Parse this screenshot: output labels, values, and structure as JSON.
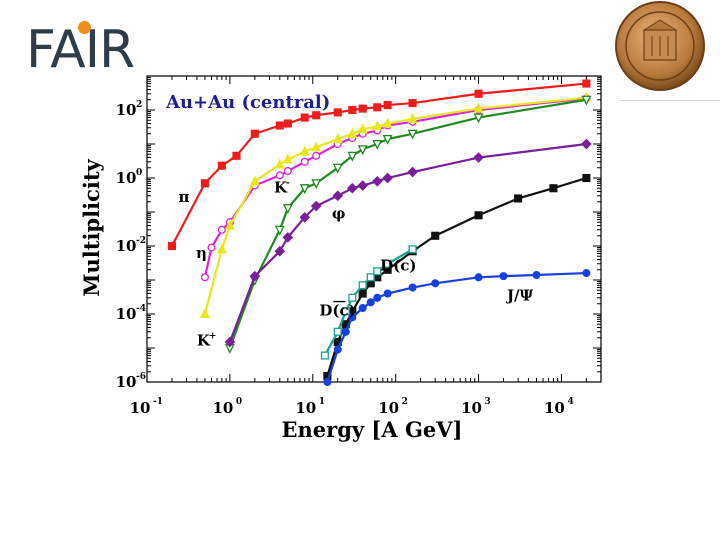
{
  "header": {
    "logo_text": "FAIR",
    "logo_accent": "#f28c18",
    "seal_icon": "university-seal-icon"
  },
  "chart_data": {
    "type": "line",
    "title": "Au+Au (central)",
    "xlabel": "Energy [A GeV]",
    "ylabel": "Multiplicity",
    "xscale": "log",
    "yscale": "log",
    "xlim": [
      0.1,
      30000
    ],
    "ylim": [
      1e-06,
      1000
    ],
    "x_ticks": [
      {
        "base": "10",
        "exp": "-1",
        "value": 0.1
      },
      {
        "base": "10",
        "exp": "0",
        "value": 1
      },
      {
        "base": "10",
        "exp": "1",
        "value": 10
      },
      {
        "base": "10",
        "exp": "2",
        "value": 100
      },
      {
        "base": "10",
        "exp": "3",
        "value": 1000
      },
      {
        "base": "10",
        "exp": "4",
        "value": 10000
      }
    ],
    "y_ticks": [
      {
        "base": "10",
        "exp": "2",
        "value": 100
      },
      {
        "base": "10",
        "exp": "0",
        "value": 1
      },
      {
        "base": "10",
        "exp": "-2",
        "value": 0.01
      },
      {
        "base": "10",
        "exp": "-4",
        "value": 0.0001
      },
      {
        "base": "10",
        "exp": "-6",
        "value": 1e-06
      }
    ],
    "series": [
      {
        "name": "π",
        "color": "#ee1c1c",
        "marker": "square",
        "filled": true,
        "label": "π",
        "label_pos": [
          0.24,
          0.2
        ],
        "x": [
          0.2,
          0.5,
          0.8,
          1.2,
          2,
          4,
          5,
          8,
          11,
          20,
          30,
          40,
          60,
          80,
          160,
          1000,
          20000
        ],
        "y": [
          0.01,
          0.7,
          2.3,
          4.5,
          20,
          35,
          40,
          60,
          70,
          85,
          100,
          110,
          120,
          140,
          160,
          300,
          600
        ]
      },
      {
        "name": "η",
        "color": "#dd22dd",
        "marker": "circle",
        "filled": false,
        "label": "η",
        "label_pos": [
          0.39,
          0.0045
        ],
        "x": [
          0.5,
          0.6,
          0.8,
          1,
          2,
          4,
          5,
          8,
          11,
          20,
          30,
          40,
          60,
          80,
          160,
          1000,
          20000
        ],
        "y": [
          0.0012,
          0.009,
          0.03,
          0.05,
          0.6,
          1.2,
          1.6,
          3,
          4.5,
          10,
          15,
          20,
          25,
          35,
          45,
          100,
          220
        ]
      },
      {
        "name": "K+",
        "color": "#e8e81a",
        "marker": "triangle",
        "filled": true,
        "label": "K",
        "label_sup": "+",
        "label_pos": [
          0.4,
          1.2e-05
        ],
        "x": [
          0.5,
          0.8,
          1,
          2,
          4,
          5,
          8,
          11,
          20,
          30,
          40,
          60,
          80,
          160,
          1000,
          20000
        ],
        "y": [
          0.0001,
          0.008,
          0.04,
          0.8,
          2.5,
          3.5,
          6,
          8,
          14,
          20,
          27,
          33,
          40,
          55,
          110,
          230
        ]
      },
      {
        "name": "K-",
        "color": "#1f8a1f",
        "marker": "triangle-down",
        "filled": false,
        "label": "K",
        "label_sup": "-",
        "label_pos": [
          3.4,
          0.38
        ],
        "x": [
          1,
          2,
          4,
          5,
          8,
          11,
          20,
          30,
          40,
          60,
          80,
          160,
          1000,
          20000
        ],
        "y": [
          1e-05,
          0.001,
          0.03,
          0.13,
          0.5,
          0.7,
          2,
          4.5,
          7,
          10,
          14,
          20,
          60,
          200
        ]
      },
      {
        "name": "φ",
        "color": "#7a1f9a",
        "marker": "diamond",
        "filled": true,
        "label": "φ",
        "label_pos": [
          17,
          0.065
        ],
        "x": [
          1,
          2,
          4,
          5,
          8,
          11,
          20,
          30,
          40,
          60,
          80,
          160,
          1000,
          20000
        ],
        "y": [
          1.5e-05,
          0.0013,
          0.007,
          0.018,
          0.07,
          0.15,
          0.3,
          0.5,
          0.6,
          0.8,
          1,
          1.5,
          4,
          10
        ]
      },
      {
        "name": "D(c)",
        "color": "#111111",
        "marker": "square",
        "filled": true,
        "label": "D(c)",
        "label_pos": [
          65,
          0.0019
        ],
        "x": [
          15,
          20,
          25,
          30,
          40,
          50,
          60,
          80,
          160,
          300,
          1000,
          3000,
          8000,
          20000
        ],
        "y": [
          1.5e-06,
          1.5e-05,
          5e-05,
          0.00012,
          0.0004,
          0.0008,
          0.0012,
          0.002,
          0.007,
          0.02,
          0.08,
          0.25,
          0.5,
          1
        ]
      },
      {
        "name": "D(c) bar",
        "color": "#18a090",
        "marker": "square",
        "filled": false,
        "label": "D(c)",
        "overline": true,
        "label_pos": [
          12,
          9e-05
        ],
        "x": [
          14,
          20,
          25,
          30,
          40,
          50,
          60,
          80,
          160
        ],
        "y": [
          6e-06,
          3e-05,
          0.00012,
          0.0003,
          0.0007,
          0.0012,
          0.0018,
          0.003,
          0.008
        ]
      },
      {
        "name": "J/Ψ",
        "color": "#1a3fe0",
        "marker": "circle",
        "filled": true,
        "label": "J/Ψ",
        "label_pos": [
          2200,
          0.00025
        ],
        "x": [
          15,
          20,
          25,
          30,
          40,
          50,
          60,
          80,
          160,
          300,
          1000,
          2000,
          5000,
          20000
        ],
        "y": [
          1e-06,
          9e-06,
          3e-05,
          8e-05,
          0.00015,
          0.00022,
          0.0003,
          0.0004,
          0.0006,
          0.0008,
          0.0012,
          0.0013,
          0.0014,
          0.0016
        ]
      }
    ]
  }
}
